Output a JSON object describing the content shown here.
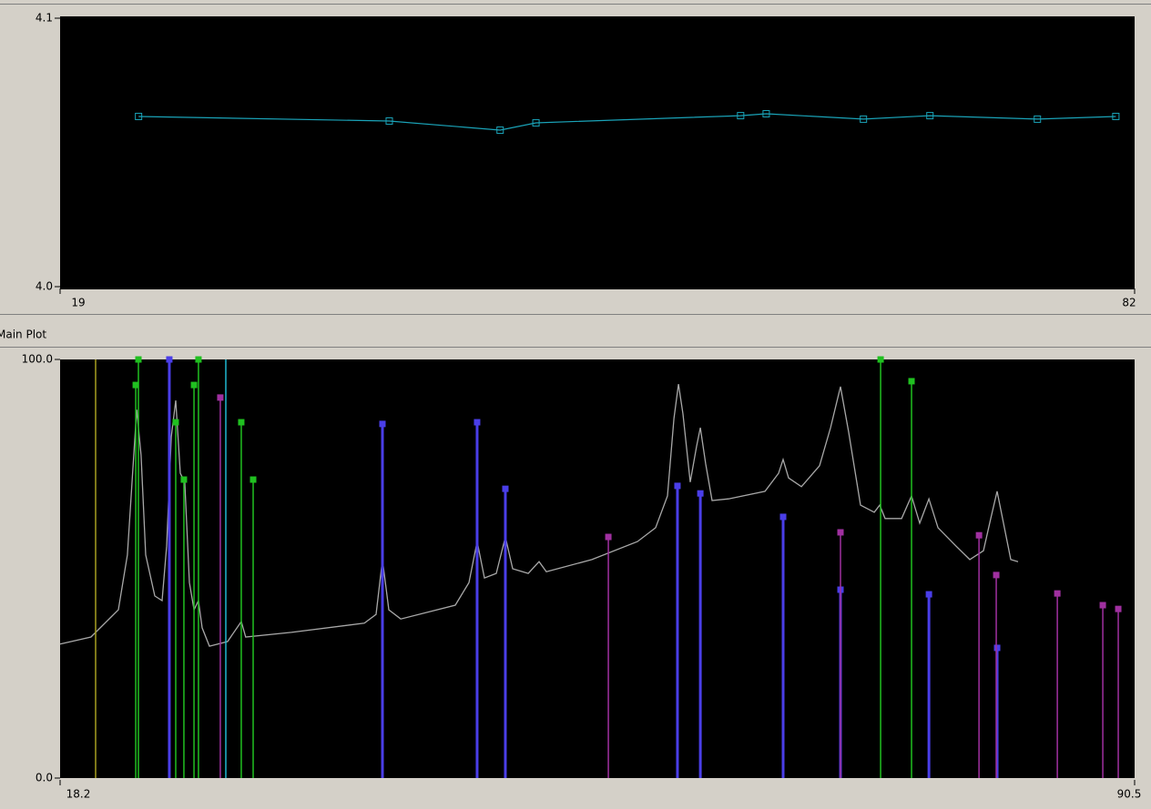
{
  "chart_data": [
    {
      "type": "line",
      "x": [
        23.6,
        38.3,
        44.8,
        46.9,
        58.9,
        60.4,
        66.1,
        70.0,
        76.3,
        80.9
      ],
      "series": [
        {
          "color": "#1aa3b8",
          "values": [
            4.0634,
            4.0617,
            4.0583,
            4.061,
            4.0637,
            4.0644,
            4.0624,
            4.0637,
            4.0624,
            4.0634
          ]
        }
      ],
      "xlim": [
        19,
        82
      ],
      "ylim": [
        4.0,
        4.1
      ],
      "xticks": [
        19,
        82
      ],
      "yticks": [
        4.1,
        {
          "value": 4.0,
          "label": "4.0"
        }
      ]
    },
    {
      "type": "stem",
      "title": "Main Plot",
      "xlim": [
        18.2,
        90.5
      ],
      "ylim": [
        0,
        100
      ],
      "xticks": [
        18.2,
        90.5
      ],
      "yticks": [
        {
          "value": 100,
          "label": "100.0"
        },
        {
          "value": 0,
          "label": "0.0"
        }
      ],
      "series": [
        {
          "type": "line",
          "color": "#a8a8a8",
          "x": [
            18.2,
            20.28,
            22.12,
            22.73,
            23.04,
            23.35,
            23.65,
            23.96,
            24.57,
            25.06,
            25.37,
            25.68,
            25.98,
            26.29,
            26.59,
            26.9,
            27.21,
            27.51,
            27.76,
            28.25,
            29.47,
            30.39,
            30.69,
            33.76,
            38.67,
            39.46,
            39.89,
            40.32,
            41.12,
            44.79,
            45.71,
            46.26,
            46.75,
            47.55,
            48.16,
            48.65,
            49.7,
            50.43,
            50.92,
            53.98,
            57.05,
            58.27,
            59.07,
            59.5,
            59.81,
            60.11,
            60.6,
            61.03,
            61.28,
            61.64,
            62.07,
            63.17,
            65.63,
            66.54,
            66.85,
            67.22,
            68.08,
            69.3,
            70.04,
            70.71,
            71.26,
            72.06,
            72.98,
            73.35,
            73.71,
            74.82,
            75.49,
            76.04,
            76.66,
            77.27,
            78.49,
            79.41,
            80.33,
            80.82,
            81.25,
            81.74,
            82.17,
            82.66
          ],
          "values": [
            32,
            33.7,
            40.2,
            53.3,
            70.7,
            88,
            77.2,
            53.3,
            43.5,
            42.4,
            55.4,
            81.5,
            90.2,
            72.8,
            70.7,
            46.7,
            40.2,
            42.4,
            35.9,
            31.5,
            32.6,
            37.4,
            33.7,
            34.8,
            37,
            39.1,
            52.2,
            40.2,
            38,
            41.3,
            46.7,
            56.5,
            47.8,
            48.9,
            57.6,
            50,
            48.9,
            51.7,
            49.3,
            52.2,
            56.5,
            59.8,
            67.4,
            85.9,
            94.1,
            87,
            70.7,
            79.3,
            83.7,
            75,
            66.3,
            66.7,
            68.5,
            72.8,
            76.1,
            71.7,
            69.6,
            74.6,
            83.7,
            93.5,
            82.6,
            65.2,
            63.5,
            65.2,
            62,
            62,
            67.4,
            60.9,
            66.7,
            59.8,
            55.4,
            52.2,
            54.3,
            62,
            68.5,
            59.8,
            52.2,
            51.7
          ]
        },
        {
          "type": "stem",
          "color": "#a8a020",
          "marker": false,
          "x": [
            20.59
          ],
          "values": [
            100
          ]
        },
        {
          "type": "stem",
          "color": "#20c020",
          "marker": true,
          "x": [
            23.29,
            23.47,
            25.98,
            26.53,
            27.21,
            27.51,
            30.39,
            31.19,
            73.41,
            75.49
          ],
          "values": [
            93.9,
            100,
            85,
            71.3,
            93.9,
            100,
            85,
            71.3,
            100,
            94.8
          ]
        },
        {
          "type": "stem",
          "color": "#4a3ee8",
          "marker": true,
          "width": 3,
          "x": [
            25.55,
            39.89,
            46.26,
            48.16,
            59.74,
            61.28,
            66.85,
            70.71,
            76.66,
            81.25
          ],
          "values": [
            100,
            84.6,
            85,
            69.1,
            69.8,
            68,
            62.4,
            45,
            43.9,
            31.1
          ]
        },
        {
          "type": "stem",
          "color": "#a030a0",
          "marker": true,
          "x": [
            28.98,
            55.09,
            70.71,
            80.03,
            81.19,
            85.3,
            88.36,
            89.4
          ],
          "values": [
            90.9,
            57.6,
            58.7,
            58,
            48.5,
            44.1,
            41.3,
            40.4
          ]
        },
        {
          "type": "stem",
          "color": "#20b8d0",
          "marker": false,
          "x": [
            29.35
          ],
          "values": [
            100
          ]
        }
      ]
    }
  ]
}
